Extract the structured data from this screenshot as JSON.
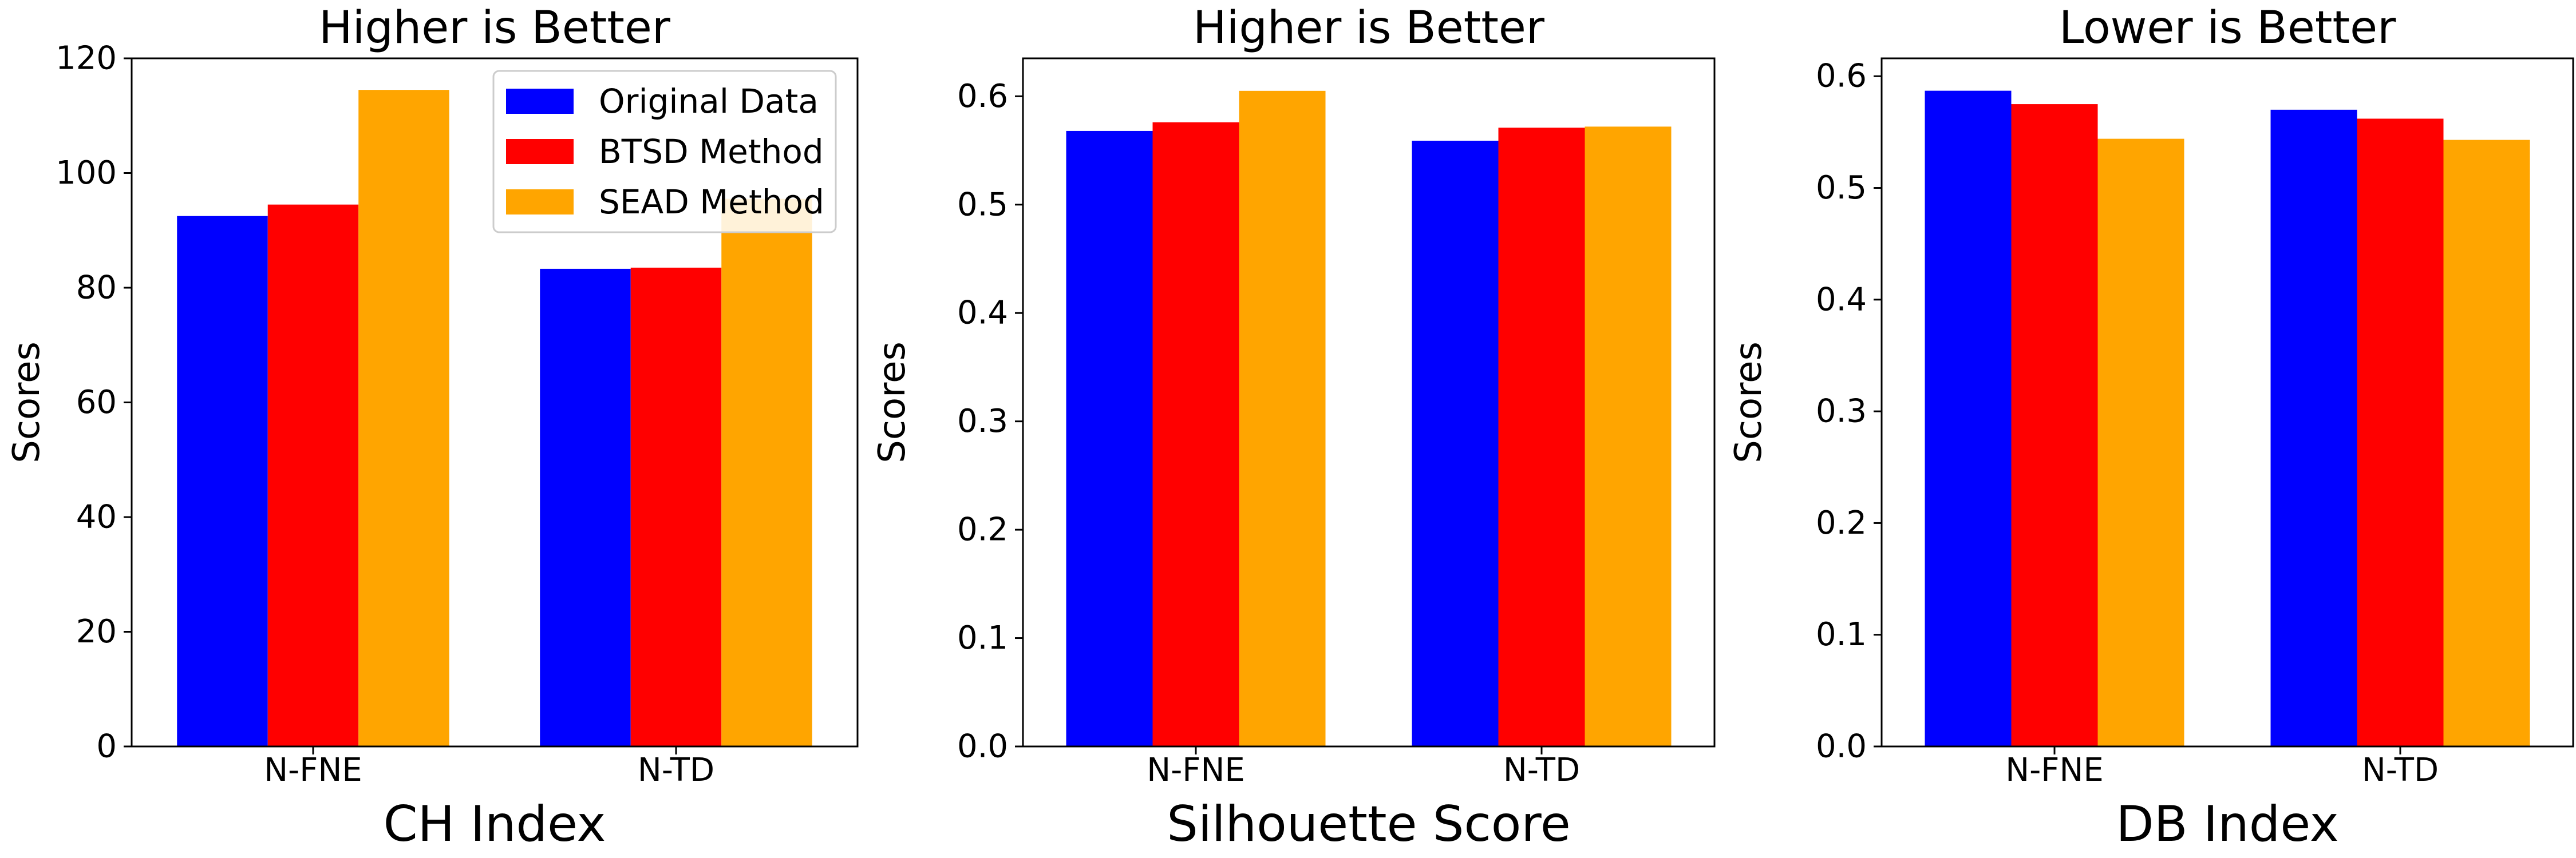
{
  "colors": {
    "series": [
      "#0000ff",
      "#ff0000",
      "#ffa500"
    ],
    "axis": "#000000",
    "background": "#ffffff",
    "legend_border": "#cccccc"
  },
  "legend": {
    "placement": "upper-right of first panel",
    "entries": [
      "Original Data",
      "BTSD Method",
      "SEAD Method"
    ]
  },
  "chart_data": [
    {
      "type": "bar",
      "title": "Higher is Better",
      "xlabel": "CH Index",
      "ylabel": "Scores",
      "categories": [
        "N-FNE",
        "N-TD"
      ],
      "series": [
        {
          "name": "Original Data",
          "values": [
            92.5,
            83.3
          ]
        },
        {
          "name": "BTSD Method",
          "values": [
            94.5,
            83.5
          ]
        },
        {
          "name": "SEAD Method",
          "values": [
            114.5,
            95.5
          ]
        }
      ],
      "ylim": [
        0,
        120
      ],
      "yticks": [
        0,
        20,
        40,
        60,
        80,
        100,
        120
      ],
      "ytick_labels": [
        "0",
        "20",
        "40",
        "60",
        "80",
        "100",
        "120"
      ],
      "grid": false,
      "legend": true
    },
    {
      "type": "bar",
      "title": "Higher is Better",
      "xlabel": "Silhouette Score",
      "ylabel": "Scores",
      "categories": [
        "N-FNE",
        "N-TD"
      ],
      "series": [
        {
          "name": "Original Data",
          "values": [
            0.568,
            0.559
          ]
        },
        {
          "name": "BTSD Method",
          "values": [
            0.576,
            0.571
          ]
        },
        {
          "name": "SEAD Method",
          "values": [
            0.605,
            0.572
          ]
        }
      ],
      "ylim": [
        0,
        0.635
      ],
      "yticks": [
        0,
        0.1,
        0.2,
        0.3,
        0.4,
        0.5,
        0.6
      ],
      "ytick_labels": [
        "0.0",
        "0.1",
        "0.2",
        "0.3",
        "0.4",
        "0.5",
        "0.6"
      ],
      "grid": false,
      "legend": false
    },
    {
      "type": "bar",
      "title": "Lower is Better",
      "xlabel": "DB Index",
      "ylabel": "Scores",
      "categories": [
        "N-FNE",
        "N-TD"
      ],
      "series": [
        {
          "name": "Original Data",
          "values": [
            0.587,
            0.57
          ]
        },
        {
          "name": "BTSD Method",
          "values": [
            0.575,
            0.562
          ]
        },
        {
          "name": "SEAD Method",
          "values": [
            0.544,
            0.543
          ]
        }
      ],
      "ylim": [
        0,
        0.616
      ],
      "yticks": [
        0,
        0.1,
        0.2,
        0.3,
        0.4,
        0.5,
        0.6
      ],
      "ytick_labels": [
        "0.0",
        "0.1",
        "0.2",
        "0.3",
        "0.4",
        "0.5",
        "0.6"
      ],
      "grid": false,
      "legend": false
    }
  ]
}
